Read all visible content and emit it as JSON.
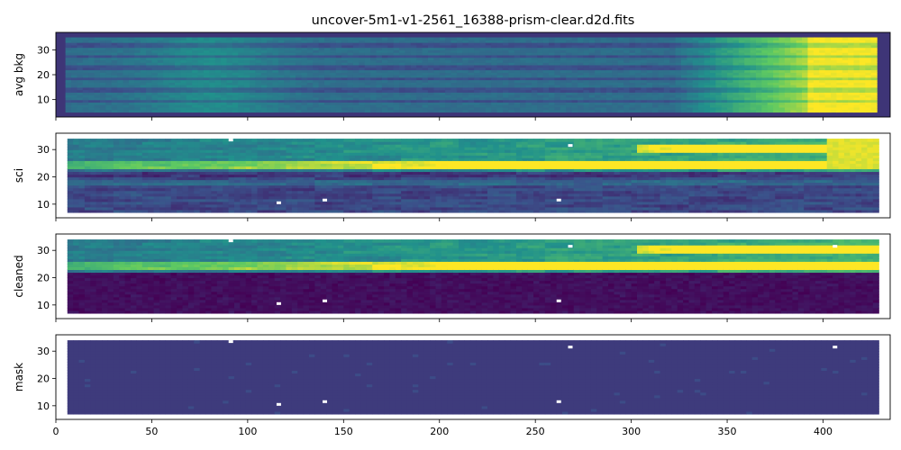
{
  "chart_data": {
    "type": "heatmap",
    "title": "uncover-5m1-v1-2561_16388-prism-clear.d2d.fits",
    "colormap": "viridis",
    "xlim": [
      0,
      435
    ],
    "xticks": [
      "0",
      "50",
      "100",
      "150",
      "200",
      "250",
      "300",
      "350",
      "400"
    ],
    "panels": [
      {
        "ylabel": "avg bkg",
        "ylim": [
          3,
          37
        ],
        "yticks": [
          "10",
          "20",
          "30"
        ],
        "data_extent": {
          "x": [
            5,
            428
          ],
          "y": [
            5,
            35
          ]
        },
        "stripe_rows": [
          9.5,
          14,
          18.5,
          23,
          27.5,
          32
        ],
        "masked_pixels": []
      },
      {
        "ylabel": "sci",
        "ylim": [
          5,
          36
        ],
        "yticks": [
          "10",
          "20",
          "30"
        ],
        "data_extent": {
          "x": [
            6,
            428
          ],
          "y": [
            7,
            34
          ]
        },
        "trace_rows": [
          24,
          30,
          18
        ],
        "masked_pixels": [
          [
            91,
            33
          ],
          [
            268,
            31
          ],
          [
            262,
            11
          ],
          [
            116,
            10
          ],
          [
            140,
            11
          ]
        ]
      },
      {
        "ylabel": "cleaned",
        "ylim": [
          5,
          36
        ],
        "yticks": [
          "10",
          "20",
          "30"
        ],
        "data_extent": {
          "x": [
            6,
            428
          ],
          "y": [
            7,
            34
          ]
        },
        "trace_rows": [
          24,
          30,
          18
        ],
        "masked_pixels": [
          [
            91,
            33
          ],
          [
            268,
            31
          ],
          [
            262,
            11
          ],
          [
            116,
            10
          ],
          [
            140,
            11
          ],
          [
            406,
            31
          ]
        ]
      },
      {
        "ylabel": "mask",
        "ylim": [
          5,
          36
        ],
        "yticks": [
          "10",
          "20",
          "30"
        ],
        "data_extent": {
          "x": [
            6,
            428
          ],
          "y": [
            7,
            34
          ]
        },
        "masked_pixels": [
          [
            91,
            33
          ],
          [
            268,
            31
          ],
          [
            262,
            11
          ],
          [
            116,
            10
          ],
          [
            140,
            11
          ],
          [
            406,
            31
          ]
        ]
      }
    ]
  }
}
